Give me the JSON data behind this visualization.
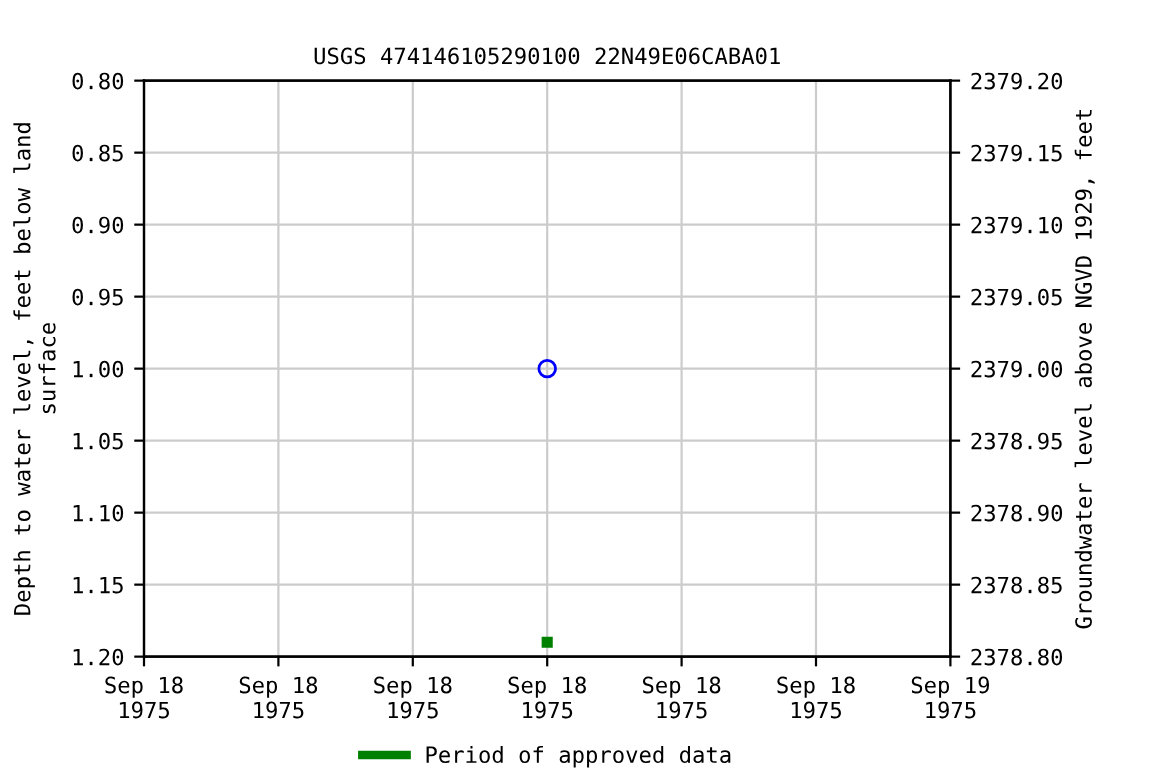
{
  "chart_data": {
    "type": "scatter",
    "title": "USGS 474146105290100 22N49E06CABA01",
    "ylabel": "Depth to water level, feet below land\nsurface",
    "y2label": "Groundwater level above NGVD 1929, feet",
    "series": [
      {
        "name": null,
        "color": "#0000ff",
        "marker": "circle",
        "x": [
          "1975-09-18T12:00"
        ],
        "values": [
          1.0
        ]
      },
      {
        "name": "Period of approved data",
        "color": "#008000",
        "marker": "square",
        "x": [
          "1975-09-18T12:00"
        ],
        "values": [
          1.19
        ]
      }
    ],
    "xlim": [
      "1975-09-18T00:00",
      "1975-09-19T00:00"
    ],
    "xticks": [
      {
        "value": "1975-09-18T00:00",
        "label": "Sep 18\n1975"
      },
      {
        "value": "1975-09-18T04:00",
        "label": "Sep 18\n1975"
      },
      {
        "value": "1975-09-18T08:00",
        "label": "Sep 18\n1975"
      },
      {
        "value": "1975-09-18T12:00",
        "label": "Sep 18\n1975"
      },
      {
        "value": "1975-09-18T16:00",
        "label": "Sep 18\n1975"
      },
      {
        "value": "1975-09-18T20:00",
        "label": "Sep 18\n1975"
      },
      {
        "value": "1975-09-19T00:00",
        "label": "Sep 19\n1975"
      }
    ],
    "ylim": [
      1.2,
      0.8
    ],
    "yticks": [
      {
        "value": 0.8,
        "label": "0.80"
      },
      {
        "value": 0.85,
        "label": "0.85"
      },
      {
        "value": 0.9,
        "label": "0.90"
      },
      {
        "value": 0.95,
        "label": "0.95"
      },
      {
        "value": 1.0,
        "label": "1.00"
      },
      {
        "value": 1.05,
        "label": "1.05"
      },
      {
        "value": 1.1,
        "label": "1.10"
      },
      {
        "value": 1.15,
        "label": "1.15"
      },
      {
        "value": 1.2,
        "label": "1.20"
      }
    ],
    "y2lim": [
      2378.8,
      2379.2
    ],
    "y2ticks": [
      {
        "value": 2378.8,
        "label": "2378.80"
      },
      {
        "value": 2378.85,
        "label": "2378.85"
      },
      {
        "value": 2378.9,
        "label": "2378.90"
      },
      {
        "value": 2378.95,
        "label": "2378.95"
      },
      {
        "value": 2379.0,
        "label": "2379.00"
      },
      {
        "value": 2379.05,
        "label": "2379.05"
      },
      {
        "value": 2379.1,
        "label": "2379.10"
      },
      {
        "value": 2379.15,
        "label": "2379.15"
      },
      {
        "value": 2379.2,
        "label": "2379.20"
      }
    ],
    "grid": true,
    "legend": "bottom"
  }
}
